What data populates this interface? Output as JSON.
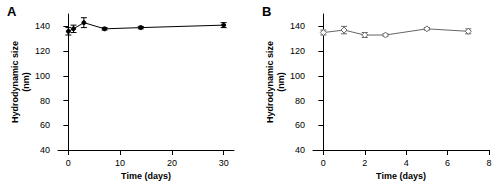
{
  "chart_data": [
    {
      "type": "line",
      "title": "A",
      "x_label": "Time (days)",
      "y_label": "Hydrodynamic size\n(nm)",
      "x": [
        0,
        1,
        3,
        7,
        14,
        30
      ],
      "values": [
        136,
        138,
        143,
        138,
        139,
        141
      ],
      "errors": [
        3,
        3,
        4,
        1,
        1,
        2
      ],
      "color": "#000000",
      "marker": "circle",
      "xlim": [
        -2,
        32
      ],
      "xticks": [
        0,
        10,
        20,
        30
      ],
      "ylim": [
        40,
        150
      ],
      "yticks": [
        40,
        60,
        80,
        100,
        120,
        140
      ],
      "grid": false
    },
    {
      "type": "line",
      "title": "B",
      "x_label": "Time (days)",
      "y_label": "Hydrodynamic size\n(nm)",
      "x": [
        0,
        1,
        2,
        3,
        5,
        7
      ],
      "values": [
        135,
        137,
        133,
        133,
        138,
        136
      ],
      "errors": [
        2,
        3,
        2,
        1,
        1,
        2
      ],
      "color": "#666666",
      "marker": "diamond",
      "xlim": [
        -0.5,
        8
      ],
      "xticks": [
        0,
        2,
        4,
        6,
        8
      ],
      "ylim": [
        40,
        150
      ],
      "yticks": [
        40,
        60,
        80,
        100,
        120,
        140
      ],
      "grid": false
    }
  ]
}
